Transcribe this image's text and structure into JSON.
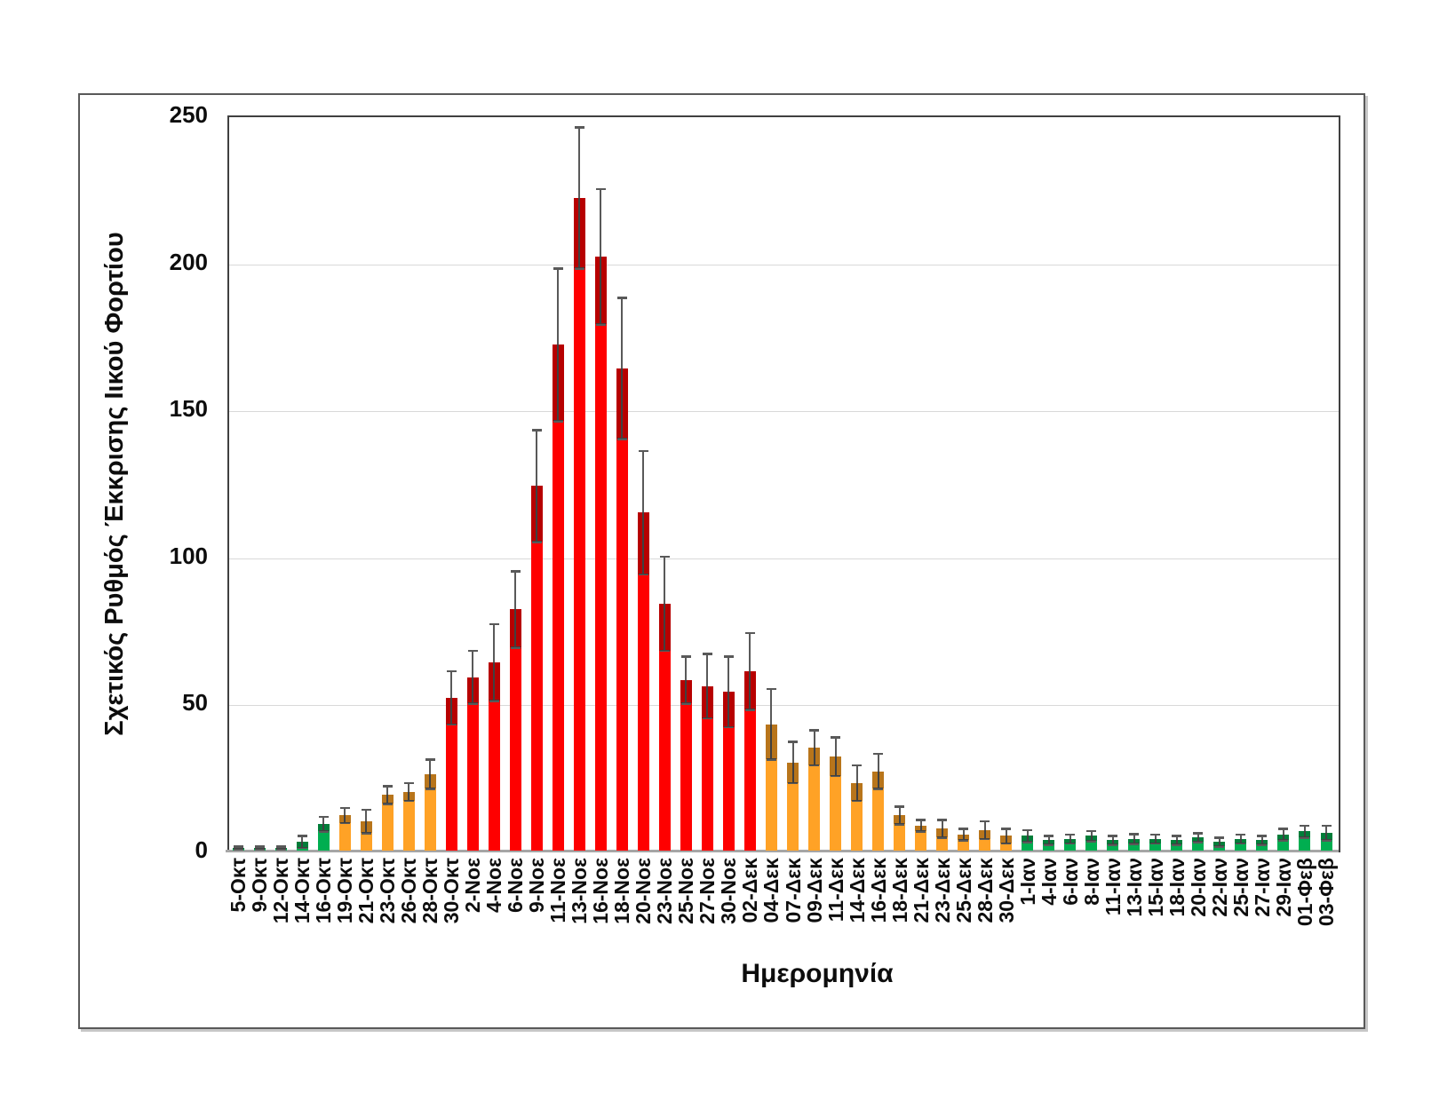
{
  "figure": {
    "page_background": "#ffffff",
    "frame_border_color": "#595959"
  },
  "chart_data": {
    "type": "bar",
    "title": "",
    "xlabel": "Ημερομηνία",
    "ylabel": "Σχετικός Ρυθμός Έκκρισης Ιικού Φορτίου",
    "ylim": [
      0,
      250
    ],
    "yticks": [
      0,
      50,
      100,
      150,
      200,
      250
    ],
    "grid": true,
    "legend": "none",
    "error_bars": true,
    "categories": [
      "5-Οκτ",
      "9-Οκτ",
      "12-Οκτ",
      "14-Οκτ",
      "16-Οκτ",
      "19-Οκτ",
      "21-Οκτ",
      "23-Οκτ",
      "26-Οκτ",
      "28-Οκτ",
      "30-Οκτ",
      "2-Νοε",
      "4-Νοε",
      "6-Νοε",
      "9-Νοε",
      "11-Νοε",
      "13-Νοε",
      "16-Νοε",
      "18-Νοε",
      "20-Νοε",
      "23-Νοε",
      "25-Νοε",
      "27-Νοε",
      "30-Νοε",
      "02-Δεκ",
      "04-Δεκ",
      "07-Δεκ",
      "09-Δεκ",
      "11-Δεκ",
      "14-Δεκ",
      "16-Δεκ",
      "18-Δεκ",
      "21-Δεκ",
      "23-Δεκ",
      "25-Δεκ",
      "28-Δεκ",
      "30-Δεκ",
      "1-Ιαν",
      "4-Ιαν",
      "6-Ιαν",
      "8-Ιαν",
      "11-Ιαν",
      "13-Ιαν",
      "15-Ιαν",
      "18-Ιαν",
      "20-Ιαν",
      "22-Ιαν",
      "25-Ιαν",
      "27-Ιαν",
      "29-Ιαν",
      "01-Φεβ",
      "03-Φεβ"
    ],
    "values": [
      1,
      1,
      1,
      3,
      9,
      12,
      10,
      19,
      20,
      26,
      52,
      59,
      64,
      82,
      124,
      172,
      222,
      202,
      164,
      115,
      84,
      58,
      56,
      54,
      61,
      43,
      30,
      35,
      32,
      23,
      27,
      12,
      8.5,
      7.5,
      5.5,
      7,
      5,
      5,
      3.5,
      4,
      5,
      3.5,
      4,
      4,
      3.5,
      4.5,
      3,
      4,
      3.5,
      5.5,
      6.5,
      6
    ],
    "errors": [
      0.5,
      0.5,
      0.5,
      2,
      2.5,
      2.5,
      4,
      3,
      3,
      5,
      9,
      9,
      13,
      13,
      19,
      26,
      24,
      23,
      24,
      21,
      16,
      8,
      11,
      12,
      13,
      12,
      7,
      6,
      6.5,
      6,
      6,
      3,
      2,
      3,
      2,
      3,
      2.5,
      2,
      1.5,
      1.5,
      1.7,
      1.5,
      1.7,
      1.5,
      1.5,
      1.5,
      1.5,
      1.5,
      1.5,
      2,
      2,
      2.5
    ],
    "bar_color_keys": [
      "green",
      "green",
      "green",
      "green",
      "green",
      "orange",
      "orange",
      "orange",
      "orange",
      "orange",
      "red",
      "red",
      "red",
      "red",
      "red",
      "red",
      "red",
      "red",
      "red",
      "red",
      "red",
      "red",
      "red",
      "red",
      "red",
      "orange",
      "orange",
      "orange",
      "orange",
      "orange",
      "orange",
      "orange",
      "orange",
      "orange",
      "orange",
      "orange",
      "orange",
      "green",
      "green",
      "green",
      "green",
      "green",
      "green",
      "green",
      "green",
      "green",
      "green",
      "green",
      "green",
      "green",
      "green",
      "green"
    ],
    "palette": {
      "green": "#00AE50",
      "orange": "#FFA226",
      "red": "#FE0000"
    },
    "error_bar_color": "#595959",
    "gridline_color": "#d9d9d9",
    "axis_line_color": "#a6a6a6",
    "plot_border_color": "#404040"
  }
}
